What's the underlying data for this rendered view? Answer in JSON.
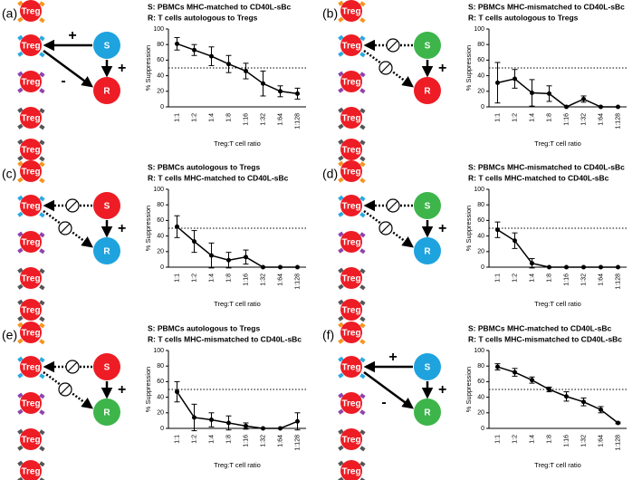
{
  "diagrams": [
    {
      "panel": "(a)",
      "cells": [
        "Treg",
        "Treg",
        "Treg",
        "Treg",
        "Treg"
      ],
      "s": {
        "label": "S",
        "color": "#1ea3de"
      },
      "r": {
        "label": "R",
        "color": "#ee1c24"
      },
      "signs": {
        "s_treg": "+",
        "treg_r": "-",
        "s_r": "+"
      }
    },
    {
      "panel": "(b)",
      "cells": [
        "Treg",
        "Treg",
        "Treg",
        "Treg",
        "Treg"
      ],
      "s": {
        "label": "S",
        "color": "#3db54a"
      },
      "r": {
        "label": "R",
        "color": "#ee1c24"
      },
      "signs": {
        "s_r": "+"
      }
    },
    {
      "panel": "(c)",
      "cells": [
        "Treg",
        "Treg",
        "Treg",
        "Treg",
        "Treg"
      ],
      "s": {
        "label": "S",
        "color": "#ee1c24"
      },
      "r": {
        "label": "R",
        "color": "#1ea3de"
      },
      "signs": {
        "s_r": "+"
      }
    },
    {
      "panel": "(d)",
      "cells": [
        "Treg",
        "Treg",
        "Treg",
        "Treg",
        "Treg"
      ],
      "s": {
        "label": "S",
        "color": "#3db54a"
      },
      "r": {
        "label": "R",
        "color": "#1ea3de"
      },
      "signs": {
        "s_r": "+"
      }
    },
    {
      "panel": "(e)",
      "cells": [
        "Treg",
        "Treg",
        "Treg",
        "Treg",
        "Treg"
      ],
      "s": {
        "label": "S",
        "color": "#ee1c24"
      },
      "r": {
        "label": "R",
        "color": "#3db54a"
      },
      "signs": {
        "s_r": "+"
      }
    },
    {
      "panel": "(f)",
      "cells": [
        "Treg",
        "Treg",
        "Treg",
        "Treg",
        "Treg"
      ],
      "s": {
        "label": "S",
        "color": "#1ea3de"
      },
      "r": {
        "label": "R",
        "color": "#3db54a"
      },
      "signs": {
        "s_treg": "+",
        "treg_r": "-",
        "s_r": "+"
      }
    }
  ],
  "chart_data": [
    {
      "type": "line",
      "title": "S: PBMCs MHC-matched to CD40L-sBc",
      "subtitle": "R: T cells autologous to Tregs",
      "xlabel": "Treg:T cell ratio",
      "ylabel": "% Suppression",
      "categories": [
        "1:1",
        "1:2",
        "1:4",
        "1:8",
        "1:16",
        "1:32",
        "1:64",
        "1:128"
      ],
      "values": [
        81,
        73,
        65,
        55,
        46,
        30,
        20,
        17
      ],
      "errors": [
        8,
        7,
        12,
        11,
        10,
        16,
        7,
        7
      ],
      "color": "#000000",
      "ylim": [
        0,
        100
      ],
      "yticks": [
        0,
        20,
        40,
        60,
        80,
        100
      ],
      "refline": 50
    },
    {
      "type": "line",
      "title": "S: PBMCs MHC-mismatched to CD40L-sBc",
      "subtitle": "R: T cells autologous to Tregs",
      "xlabel": "Treg:T cell ratio",
      "ylabel": "% Suppression",
      "categories": [
        "1:1",
        "1:2",
        "1:4",
        "1:8",
        "1:16",
        "1:32",
        "1:64",
        "1:128"
      ],
      "values": [
        31,
        36,
        18,
        17,
        0,
        10,
        0,
        0
      ],
      "errors": [
        26,
        12,
        17,
        10,
        0,
        4,
        0,
        0
      ],
      "color": "#000000",
      "ylim": [
        0,
        100
      ],
      "yticks": [
        0,
        20,
        40,
        60,
        80,
        100
      ],
      "refline": 50
    },
    {
      "type": "line",
      "title": "S: PBMCs autologous to Tregs",
      "subtitle": "R: T cells MHC-matched to CD40L-sBc",
      "xlabel": "Treg:T cell ratio",
      "ylabel": "% Suppression",
      "categories": [
        "1:1",
        "1:2",
        "1:4",
        "1:8",
        "1:16",
        "1:32",
        "1:64",
        "1:128"
      ],
      "values": [
        52,
        33,
        15,
        9,
        13,
        0,
        0,
        0
      ],
      "errors": [
        14,
        14,
        16,
        10,
        9,
        0,
        0,
        0
      ],
      "color": "#000000",
      "ylim": [
        0,
        100
      ],
      "yticks": [
        0,
        20,
        40,
        60,
        80,
        100
      ],
      "refline": 50
    },
    {
      "type": "line",
      "title": "S: PBMCs MHC-mismatched to CD40L-sBc",
      "subtitle": "R: T cells MHC-matched to CD40L-sBc",
      "xlabel": "Treg:T cell ratio",
      "ylabel": "% Suppression",
      "categories": [
        "1:1",
        "1:2",
        "1:4",
        "1:8",
        "1:16",
        "1:32",
        "1:64",
        "1:128"
      ],
      "values": [
        48,
        34,
        5,
        0,
        0,
        0,
        0,
        0
      ],
      "errors": [
        10,
        10,
        6,
        0,
        0,
        0,
        0,
        0
      ],
      "color": "#000000",
      "ylim": [
        0,
        100
      ],
      "yticks": [
        0,
        20,
        40,
        60,
        80,
        100
      ],
      "refline": 50
    },
    {
      "type": "line",
      "title": "S: PBMCs autologous to Tregs",
      "subtitle": "R: T cells MHC-mismatched to CD40L-sBc",
      "xlabel": "Treg:T cell ratio",
      "ylabel": "% Suppression",
      "categories": [
        "1:1",
        "1:2",
        "1:4",
        "1:8",
        "1:16",
        "1:32",
        "1:64",
        "1:128"
      ],
      "values": [
        47,
        14,
        11,
        7,
        3,
        0,
        0,
        9
      ],
      "errors": [
        13,
        17,
        9,
        9,
        4,
        0,
        0,
        11
      ],
      "color": "#000000",
      "ylim": [
        0,
        100
      ],
      "yticks": [
        0,
        20,
        40,
        60,
        80,
        100
      ],
      "refline": 50
    },
    {
      "type": "line",
      "title": "S: PBMCs MHC-matched to CD40L-sBc",
      "subtitle": "R: T cells MHC-mismatched to CD40L-sBc",
      "xlabel": "Treg:T cell ratio",
      "ylabel": "% Suppression",
      "categories": [
        "1:1",
        "1:2",
        "1:4",
        "1:8",
        "1:16",
        "1:32",
        "1:64",
        "1:128"
      ],
      "values": [
        79,
        72,
        62,
        50,
        41,
        34,
        24,
        7
      ],
      "errors": [
        4,
        5,
        4,
        3,
        6,
        5,
        4,
        1
      ],
      "color": "#000000",
      "ylim": [
        0,
        100
      ],
      "yticks": [
        0,
        20,
        40,
        60,
        80,
        100
      ],
      "refline": 50
    }
  ]
}
